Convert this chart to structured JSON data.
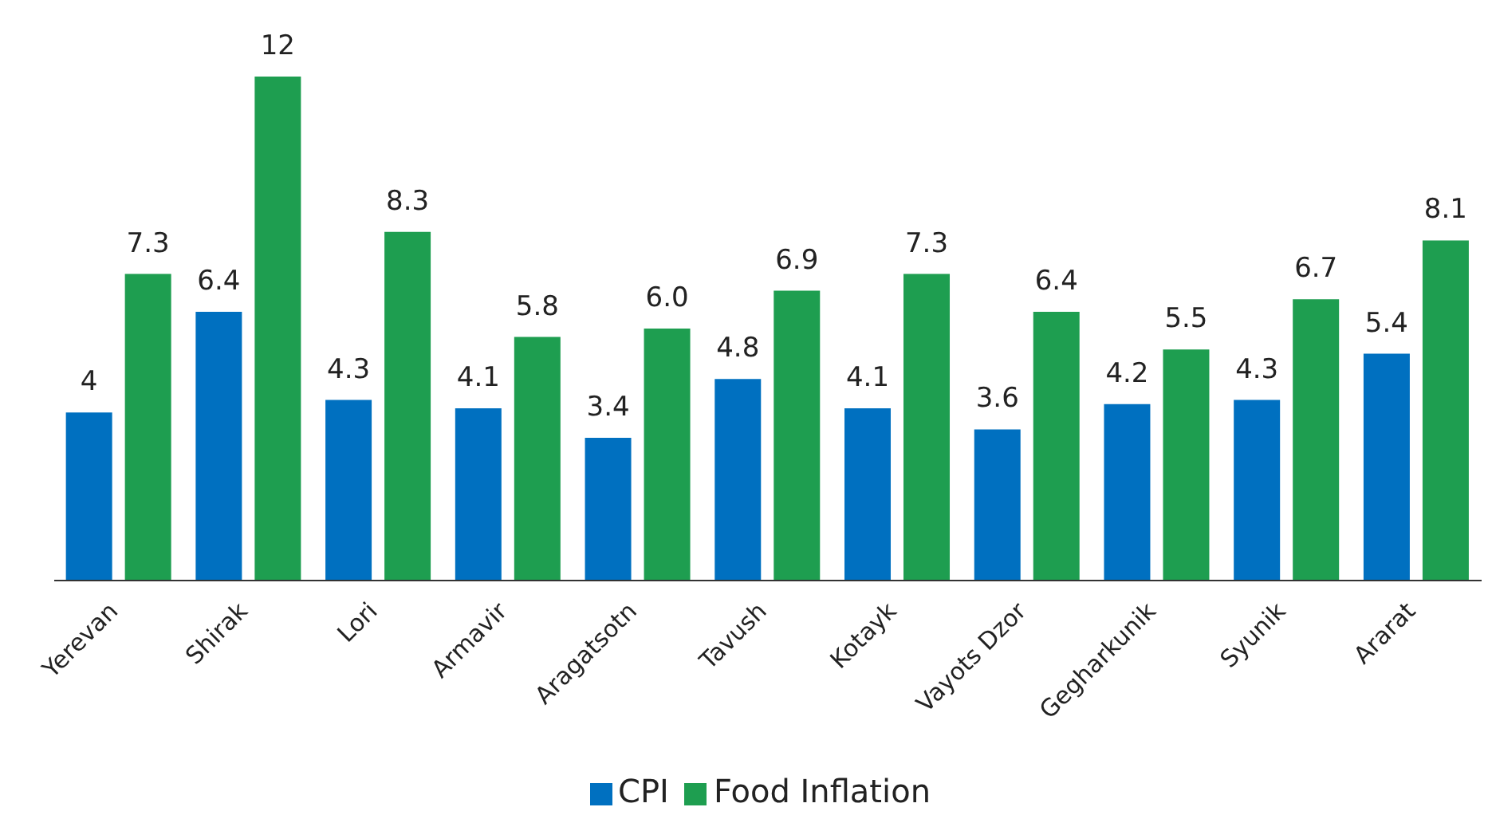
{
  "chart_data": {
    "type": "bar",
    "categories": [
      "Yerevan",
      "Shirak",
      "Lori",
      "Armavir",
      "Aragatsotn",
      "Tavush",
      "Kotayk",
      "Vayots Dzor",
      "Gegharkunik",
      "Syunik",
      "Ararat"
    ],
    "series": [
      {
        "name": "CPI",
        "color": "#0070c0",
        "values": [
          4,
          6.4,
          4.3,
          4.1,
          3.4,
          4.8,
          4.1,
          3.6,
          4.2,
          4.3,
          5.4
        ],
        "value_labels": [
          "4",
          "6.4",
          "4.3",
          "4.1",
          "3.4",
          "4.8",
          "4.1",
          "3.6",
          "4.2",
          "4.3",
          "5.4"
        ]
      },
      {
        "name": "Food Inflation",
        "color": "#1e9e50",
        "values": [
          7.3,
          12,
          8.3,
          5.8,
          6.0,
          6.9,
          7.3,
          6.4,
          5.5,
          6.7,
          8.1
        ],
        "value_labels": [
          "7.3",
          "12",
          "8.3",
          "5.8",
          "6.0",
          "6.9",
          "7.3",
          "6.4",
          "5.5",
          "6.7",
          "8.1"
        ]
      }
    ],
    "grid": false,
    "legend": "bottom"
  }
}
